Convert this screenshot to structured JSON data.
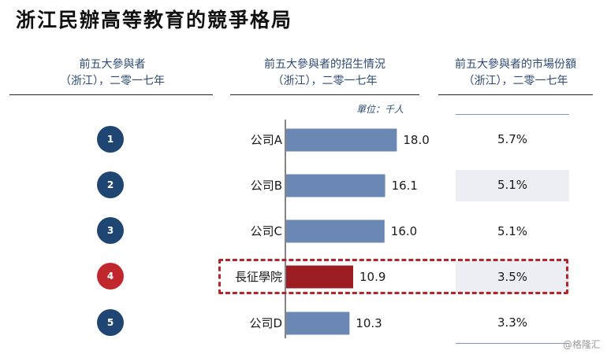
{
  "title": "浙江民辦高等教育的競爭格局",
  "headers": {
    "col1": [
      "前五大參與者",
      "（浙江），二零一七年"
    ],
    "col2": [
      "前五大參與者的招生情況",
      "（浙江），二零一七年"
    ],
    "col3": [
      "前五大參與者的市場份額",
      "（浙江），二零一七年"
    ]
  },
  "unit_label": "單位：千人",
  "watermark": "@格隆汇",
  "colors": {
    "bar": "#6b88b5",
    "highlight_bar": "#9b1d22",
    "rank_circle": "#1f4673",
    "highlight_circle": "#c0282d",
    "dash": "#b3262b"
  },
  "chart_data": {
    "type": "bar",
    "orientation": "horizontal",
    "categories": [
      "公司A",
      "公司B",
      "公司C",
      "長征學院",
      "公司D"
    ],
    "ranks": [
      "1",
      "2",
      "3",
      "4",
      "5"
    ],
    "values": [
      18.0,
      16.1,
      16.0,
      10.9,
      10.3
    ],
    "value_labels": [
      "18.0",
      "16.1",
      "16.0",
      "10.9",
      "10.3"
    ],
    "market_share": [
      "5.7%",
      "5.1%",
      "5.1%",
      "3.5%",
      "3.3%"
    ],
    "highlight_index": 3,
    "xlim": [
      0,
      30
    ]
  }
}
